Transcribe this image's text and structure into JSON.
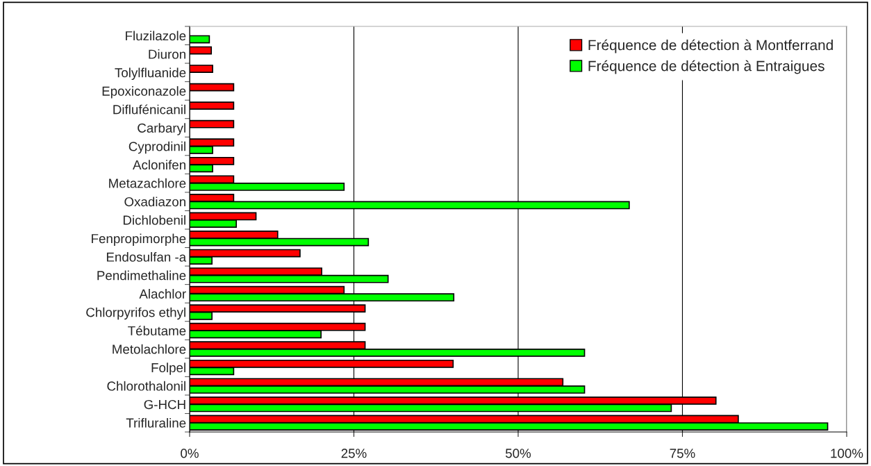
{
  "chart_data": {
    "type": "bar",
    "orientation": "horizontal",
    "categories": [
      "Fluzilazole",
      "Diuron",
      "Tolylfluanide",
      "Epoxiconazole",
      "Diflufénicanil",
      "Carbaryl",
      "Cyprodinil",
      "Aclonifen",
      "Metazachlore",
      "Oxadiazon",
      "Dichlobenil",
      "Fenpropimorphe",
      "Endosulfan -a",
      "Pendimethaline",
      "Alachlor",
      "Chlorpyrifos ethyl",
      "Tébutame",
      "Metolachlore",
      "Folpel",
      "Chlorothalonil",
      "G-HCH",
      "Trifluraline"
    ],
    "series": [
      {
        "name": "Fréquence de détection à Montferrand",
        "color": "#ff0000",
        "values": [
          null,
          3.3,
          3.5,
          6.7,
          6.7,
          6.7,
          6.7,
          6.7,
          6.7,
          6.7,
          10.1,
          13.4,
          16.8,
          20.1,
          23.5,
          26.7,
          26.7,
          26.7,
          40.1,
          56.8,
          80.1,
          83.5
        ]
      },
      {
        "name": "Fréquence de détection à Entraigues",
        "color": "#00ff00",
        "values": [
          3.0,
          null,
          null,
          null,
          null,
          null,
          3.5,
          3.5,
          23.5,
          66.9,
          7.1,
          27.2,
          3.4,
          30.2,
          40.2,
          3.4,
          20.0,
          60.1,
          6.7,
          60.1,
          73.3,
          97.1
        ]
      }
    ],
    "xlim": [
      0,
      100
    ],
    "xticks": [
      {
        "value": 0,
        "label": "0%"
      },
      {
        "value": 25,
        "label": "25%"
      },
      {
        "value": 50,
        "label": "50%"
      },
      {
        "value": 75,
        "label": "75%"
      },
      {
        "value": 100,
        "label": "100%"
      }
    ],
    "grid": "x",
    "legend": "top right"
  }
}
